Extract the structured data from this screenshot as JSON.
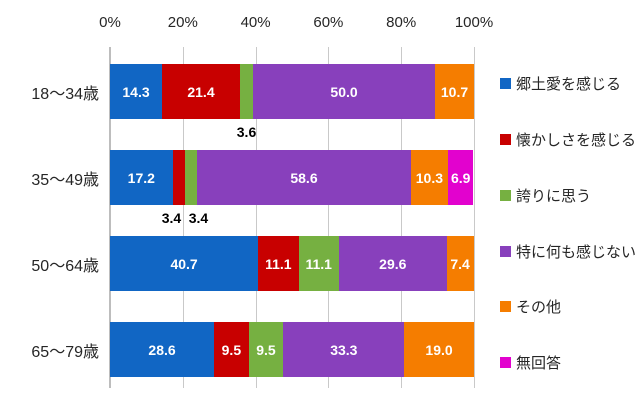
{
  "chart_data": {
    "type": "bar",
    "stacked": true,
    "orientation": "horizontal",
    "title": "",
    "categories": [
      "18〜34歳",
      "35〜49歳",
      "50〜64歳",
      "65〜79歳"
    ],
    "series": [
      {
        "name": "郷土愛を感じる",
        "color": "#1166C4",
        "values": [
          14.3,
          17.2,
          40.7,
          28.6
        ]
      },
      {
        "name": "懐かしさを感じる",
        "color": "#C80000",
        "values": [
          21.4,
          3.4,
          11.1,
          9.5
        ]
      },
      {
        "name": "誇りに思う",
        "color": "#76B041",
        "values": [
          3.6,
          3.4,
          11.1,
          9.5
        ]
      },
      {
        "name": "特に何も感じない",
        "color": "#8840BC",
        "values": [
          50.0,
          58.6,
          29.6,
          33.3
        ]
      },
      {
        "name": "その他",
        "color": "#F57D00",
        "values": [
          10.7,
          10.3,
          7.4,
          19.0
        ]
      },
      {
        "name": "無回答",
        "color": "#E202CE",
        "values": [
          0,
          6.9,
          0,
          0
        ]
      }
    ],
    "x_axis": {
      "position": "top",
      "range": [
        0,
        100
      ],
      "tick_labels": [
        "0%",
        "20%",
        "40%",
        "60%",
        "80%",
        "100%"
      ],
      "grid": true
    },
    "value_label_decimals": 1,
    "small_value_callout_threshold": 4,
    "legend_position": "right",
    "colors": {
      "gridline": "#C9C9C9",
      "axis_line": "#BDBDBD",
      "text": "#262626",
      "value_label": "#FFFFFF",
      "callout_label": "#000000",
      "background": "#FFFFFF"
    }
  }
}
